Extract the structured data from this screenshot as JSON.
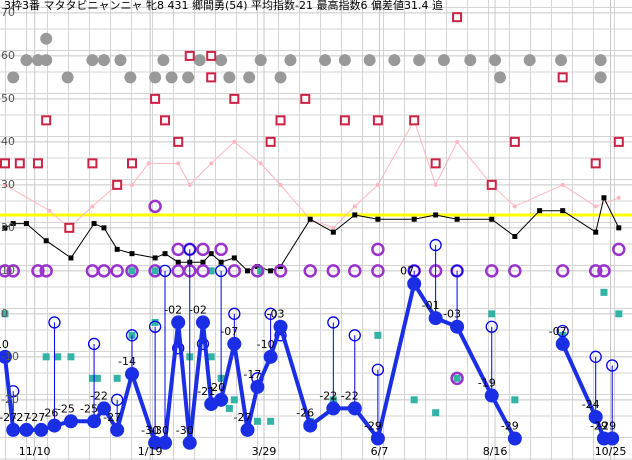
{
  "chart_data": {
    "type": "line",
    "title": "3枠3番 マタタビニャンニャ 牝8 431 郷間勇(54) 平均指数-21 最高指数6 偏差値31.4 追",
    "xlim": [
      -21,
      362
    ],
    "ylim": [
      -34,
      73
    ],
    "xticks": [
      {
        "value": 0,
        "label": "11/10"
      },
      {
        "value": 70,
        "label": "1/19"
      },
      {
        "value": 139,
        "label": "3/29"
      },
      {
        "value": 209,
        "label": "6/7"
      },
      {
        "value": 279,
        "label": "8/16"
      },
      {
        "value": 349,
        "label": "10/25"
      }
    ],
    "yticks": [
      70,
      60,
      50,
      40,
      30,
      20,
      10,
      0,
      -10,
      -20
    ],
    "grid": true,
    "reference_line": {
      "value": 23,
      "color": "#ffff00"
    },
    "series": [
      {
        "type": "line",
        "marker": "dot",
        "color": "#ffb6c1",
        "x": [
          -18,
          9,
          21,
          35,
          50,
          59,
          69,
          87,
          94,
          107,
          121,
          137,
          149,
          167,
          181,
          194,
          208,
          230,
          243,
          256,
          277,
          291,
          320,
          340,
          354
        ],
        "values": [
          30,
          24,
          20,
          25,
          30,
          30,
          35,
          35,
          30,
          35,
          40,
          35,
          30,
          22,
          20,
          25,
          30,
          45,
          30,
          40,
          30,
          25,
          30,
          25,
          27
        ]
      },
      {
        "type": "line",
        "marker": "square-small",
        "color": "#000000",
        "x": [
          -18,
          -13,
          -5,
          7,
          22,
          36,
          42,
          50,
          59,
          73,
          79,
          87,
          94,
          102,
          107,
          113,
          121,
          129,
          135,
          143,
          149,
          167,
          181,
          194,
          208,
          230,
          243,
          256,
          277,
          291,
          306,
          320,
          340,
          345,
          354
        ],
        "values": [
          20,
          21,
          21,
          17,
          13,
          21,
          20,
          15,
          14,
          13,
          14,
          12,
          12,
          12,
          14,
          12,
          13,
          10,
          11,
          10,
          11,
          22,
          19,
          23,
          22,
          22,
          23,
          22,
          22,
          18,
          24,
          24,
          19,
          27,
          20
        ]
      },
      {
        "type": "scatter",
        "marker": "circle-filled",
        "color": "#999999",
        "x": [
          -5,
          2,
          7,
          7,
          35,
          42,
          52,
          78,
          100,
          113,
          137,
          155,
          176,
          188,
          203,
          218,
          233,
          248,
          264,
          279,
          300,
          319,
          343,
          -13,
          20,
          58,
          73,
          83,
          93,
          118,
          130,
          149,
          282,
          343
        ],
        "values": [
          59,
          59,
          59,
          64,
          59,
          59,
          59,
          59,
          59,
          59,
          59,
          59,
          59,
          59,
          59,
          59,
          59,
          59,
          59,
          59,
          59,
          59,
          59,
          55,
          55,
          55,
          55,
          55,
          55,
          55,
          55,
          55,
          55,
          55
        ]
      },
      {
        "type": "scatter",
        "marker": "square-open",
        "color": "#cc2244",
        "x": [
          -18,
          -9,
          2,
          7,
          21,
          35,
          50,
          59,
          73,
          79,
          87,
          94,
          107,
          107,
          121,
          143,
          149,
          164,
          188,
          208,
          230,
          243,
          256,
          277,
          291,
          320,
          340,
          354
        ],
        "values": [
          35,
          35,
          35,
          45,
          20,
          35,
          30,
          35,
          50,
          45,
          40,
          60,
          60,
          55,
          50,
          40,
          45,
          50,
          45,
          45,
          45,
          35,
          69,
          30,
          40,
          55,
          35,
          40
        ]
      },
      {
        "type": "scatter",
        "marker": "square-filled",
        "color": "#33b3a6",
        "x": [
          -18,
          7,
          14,
          22,
          35,
          38,
          50,
          59,
          59,
          73,
          73,
          94,
          107,
          107,
          113,
          118,
          121,
          135,
          137,
          143,
          167,
          181,
          208,
          230,
          243,
          256,
          277,
          291,
          320,
          345,
          354
        ],
        "values": [
          0,
          -10,
          -10,
          -10,
          -15,
          -15,
          -15,
          -5,
          10,
          -2,
          10,
          -10,
          -10,
          10,
          -15,
          -22,
          -20,
          -25,
          10,
          -25,
          -25,
          -20,
          -5,
          -20,
          -23,
          -15,
          0,
          -20,
          -5,
          5,
          0
        ]
      },
      {
        "type": "scatter",
        "marker": "circle-open",
        "color": "#9933cc",
        "x": [
          -18,
          -13,
          2,
          7,
          35,
          42,
          50,
          59,
          73,
          73,
          87,
          87,
          94,
          94,
          102,
          102,
          113,
          121,
          135,
          149,
          167,
          181,
          194,
          208,
          208,
          230,
          243,
          256,
          256,
          277,
          291,
          320,
          340,
          345,
          354
        ],
        "values": [
          10,
          10,
          10,
          10,
          10,
          10,
          10,
          10,
          10,
          25,
          10,
          15,
          10,
          15,
          10,
          15,
          15,
          10,
          10,
          10,
          10,
          10,
          10,
          10,
          15,
          10,
          10,
          10,
          -15,
          10,
          10,
          10,
          10,
          10,
          15
        ]
      },
      {
        "type": "scatter",
        "marker": "circle-open",
        "color": "#0000ee",
        "stems": true,
        "x": [
          -13,
          12,
          36,
          50,
          59,
          73,
          79,
          87,
          94,
          102,
          113,
          121,
          135,
          143,
          149,
          181,
          194,
          208,
          230,
          243,
          256,
          277,
          320,
          340,
          350
        ],
        "values": [
          -18,
          -2,
          -7,
          -20,
          -5,
          -3,
          10,
          -8,
          15,
          -7,
          10,
          0,
          -15,
          0,
          -5,
          -2,
          -5,
          -13,
          10,
          16,
          10,
          -3,
          -4,
          -10,
          -12
        ]
      },
      {
        "type": "line",
        "marker": "circle-big",
        "color": "#1a2ee6",
        "x": [
          -18,
          -13,
          -5,
          4,
          12,
          22,
          36,
          42,
          50,
          59,
          73,
          79,
          87,
          94,
          102,
          107,
          113,
          121,
          129,
          135,
          143,
          149,
          167,
          181,
          194,
          208,
          230,
          243,
          256,
          277,
          291,
          306,
          320,
          340,
          345,
          350
        ],
        "values": [
          -10,
          -27,
          -27,
          -27,
          -26,
          -25,
          -25,
          -22,
          -27,
          -14,
          -30,
          -30,
          -2,
          -30,
          -2,
          -21,
          -20,
          -7,
          -27,
          -17,
          -10,
          -3,
          -26,
          -22,
          -22,
          -29,
          7,
          -1,
          -3,
          -19,
          -29,
          null,
          -7,
          -24,
          -29,
          -29
        ],
        "value_labels": [
          "-10",
          "-27",
          "-27",
          "-27",
          "-26",
          "-25",
          "-25",
          "-22",
          "-27",
          "-14",
          "-30",
          "-30",
          "-02",
          "-30",
          "-02",
          "-21",
          "-20",
          "-07",
          "-27",
          "-17",
          "-10",
          "-03",
          "-26",
          "-22",
          "-22",
          "-29",
          "07",
          "-01",
          "-03",
          "-19",
          "-29",
          null,
          "-07",
          "-24",
          "-29",
          "-29"
        ]
      }
    ]
  }
}
